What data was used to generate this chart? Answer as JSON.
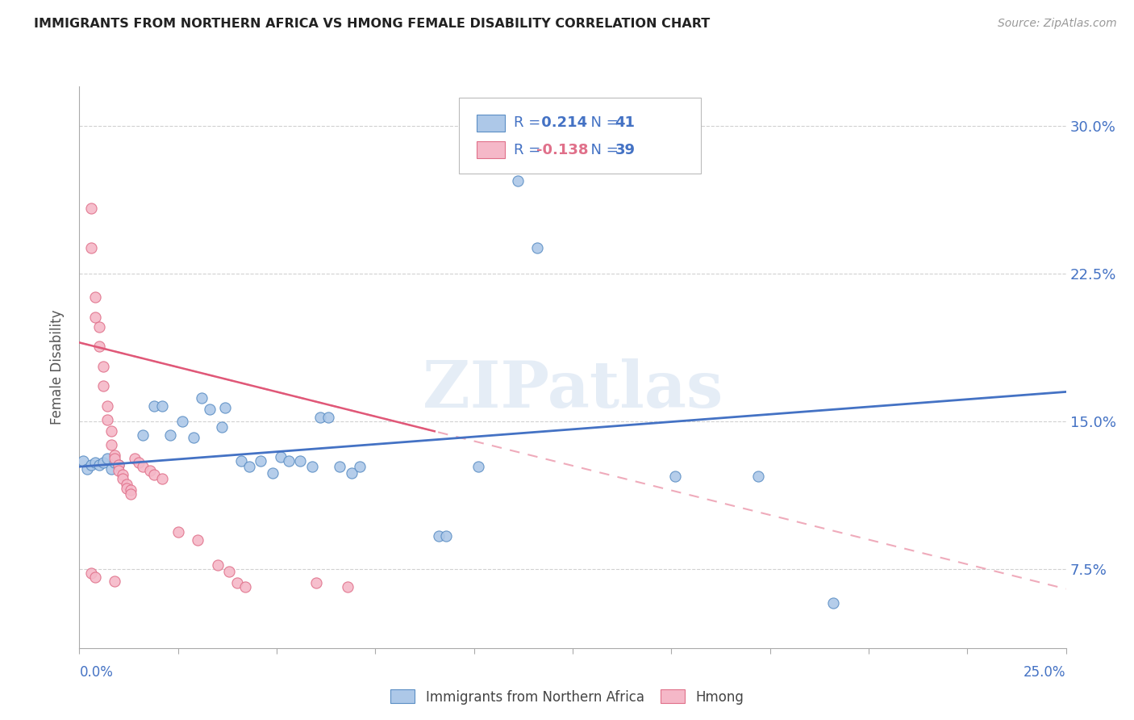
{
  "title": "IMMIGRANTS FROM NORTHERN AFRICA VS HMONG FEMALE DISABILITY CORRELATION CHART",
  "source": "Source: ZipAtlas.com",
  "xlabel_bottom_left": "0.0%",
  "xlabel_bottom_right": "25.0%",
  "ylabel": "Female Disability",
  "ylabel_right_ticks": [
    "7.5%",
    "15.0%",
    "22.5%",
    "30.0%"
  ],
  "ylabel_right_vals": [
    0.075,
    0.15,
    0.225,
    0.3
  ],
  "xlim": [
    0.0,
    0.25
  ],
  "ylim": [
    0.035,
    0.32
  ],
  "blue_R": "0.214",
  "blue_N": "41",
  "pink_R": "-0.138",
  "pink_N": "39",
  "watermark": "ZIPatlas",
  "blue_color": "#adc8e8",
  "pink_color": "#f5b8c8",
  "blue_edge_color": "#5b8ec4",
  "pink_edge_color": "#e0708a",
  "blue_line_color": "#4472c4",
  "pink_line_color": "#e05878",
  "legend_text_color": "#4472c4",
  "blue_scatter": [
    [
      0.001,
      0.13
    ],
    [
      0.002,
      0.126
    ],
    [
      0.003,
      0.128
    ],
    [
      0.004,
      0.129
    ],
    [
      0.005,
      0.128
    ],
    [
      0.006,
      0.129
    ],
    [
      0.007,
      0.131
    ],
    [
      0.008,
      0.126
    ],
    [
      0.009,
      0.129
    ],
    [
      0.01,
      0.128
    ],
    [
      0.016,
      0.143
    ],
    [
      0.019,
      0.158
    ],
    [
      0.021,
      0.158
    ],
    [
      0.023,
      0.143
    ],
    [
      0.026,
      0.15
    ],
    [
      0.029,
      0.142
    ],
    [
      0.031,
      0.162
    ],
    [
      0.033,
      0.156
    ],
    [
      0.036,
      0.147
    ],
    [
      0.037,
      0.157
    ],
    [
      0.041,
      0.13
    ],
    [
      0.043,
      0.127
    ],
    [
      0.046,
      0.13
    ],
    [
      0.049,
      0.124
    ],
    [
      0.051,
      0.132
    ],
    [
      0.053,
      0.13
    ],
    [
      0.056,
      0.13
    ],
    [
      0.059,
      0.127
    ],
    [
      0.061,
      0.152
    ],
    [
      0.063,
      0.152
    ],
    [
      0.066,
      0.127
    ],
    [
      0.069,
      0.124
    ],
    [
      0.071,
      0.127
    ],
    [
      0.091,
      0.092
    ],
    [
      0.093,
      0.092
    ],
    [
      0.101,
      0.127
    ],
    [
      0.111,
      0.272
    ],
    [
      0.116,
      0.238
    ],
    [
      0.151,
      0.122
    ],
    [
      0.172,
      0.122
    ],
    [
      0.191,
      0.058
    ]
  ],
  "pink_scatter": [
    [
      0.003,
      0.258
    ],
    [
      0.003,
      0.238
    ],
    [
      0.004,
      0.213
    ],
    [
      0.004,
      0.203
    ],
    [
      0.005,
      0.198
    ],
    [
      0.005,
      0.188
    ],
    [
      0.006,
      0.178
    ],
    [
      0.006,
      0.168
    ],
    [
      0.007,
      0.158
    ],
    [
      0.007,
      0.151
    ],
    [
      0.008,
      0.145
    ],
    [
      0.008,
      0.138
    ],
    [
      0.009,
      0.133
    ],
    [
      0.009,
      0.131
    ],
    [
      0.01,
      0.128
    ],
    [
      0.01,
      0.125
    ],
    [
      0.011,
      0.123
    ],
    [
      0.011,
      0.121
    ],
    [
      0.012,
      0.118
    ],
    [
      0.012,
      0.116
    ],
    [
      0.013,
      0.115
    ],
    [
      0.013,
      0.113
    ],
    [
      0.014,
      0.131
    ],
    [
      0.015,
      0.129
    ],
    [
      0.016,
      0.127
    ],
    [
      0.018,
      0.125
    ],
    [
      0.019,
      0.123
    ],
    [
      0.021,
      0.121
    ],
    [
      0.025,
      0.094
    ],
    [
      0.03,
      0.09
    ],
    [
      0.003,
      0.073
    ],
    [
      0.004,
      0.071
    ],
    [
      0.009,
      0.069
    ],
    [
      0.035,
      0.077
    ],
    [
      0.038,
      0.074
    ],
    [
      0.04,
      0.068
    ],
    [
      0.042,
      0.066
    ],
    [
      0.06,
      0.068
    ],
    [
      0.068,
      0.066
    ]
  ],
  "background_color": "#ffffff",
  "grid_color": "#cccccc"
}
